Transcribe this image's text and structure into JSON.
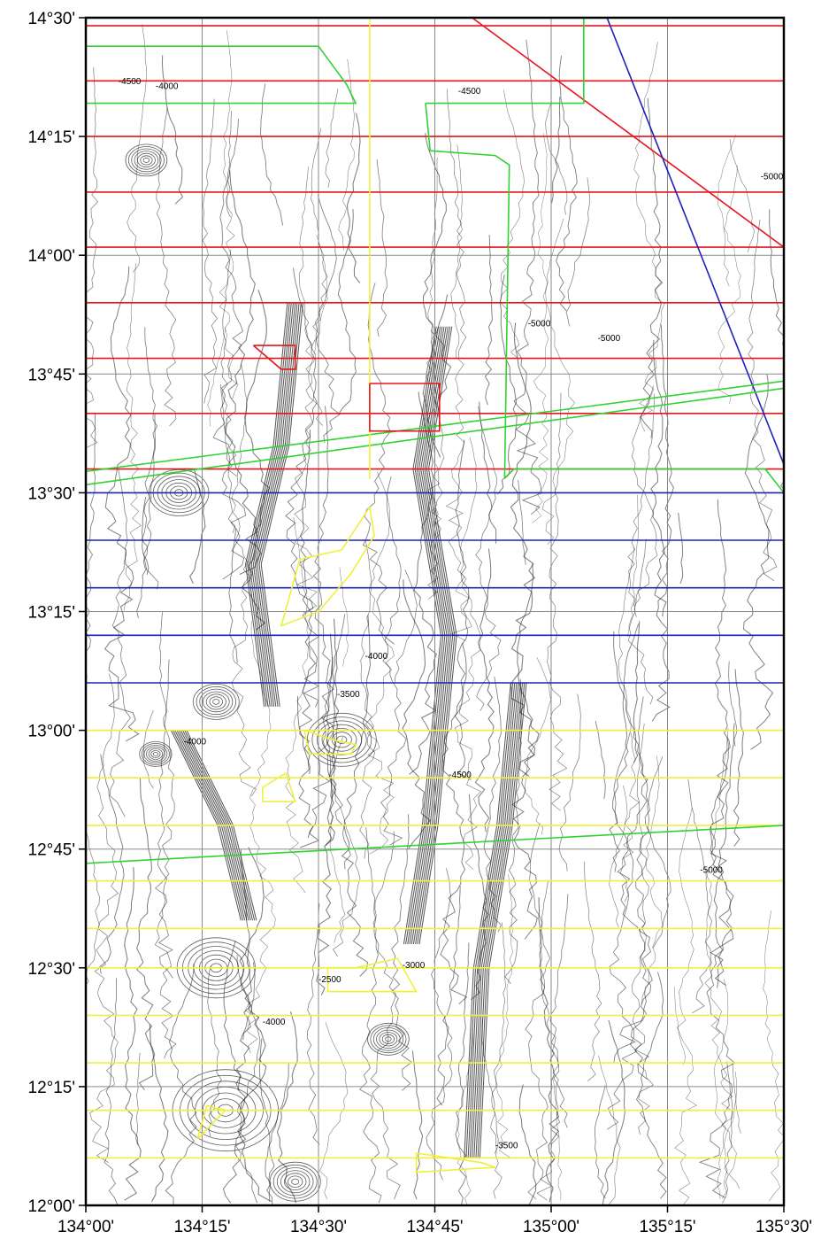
{
  "map": {
    "lon_range": [
      134.0,
      135.5
    ],
    "lat_range": [
      12.0,
      14.5
    ],
    "grid_interval_minutes": 15,
    "lon_labels": [
      "134°00'",
      "134°15'",
      "134°30'",
      "134°45'",
      "135°00'",
      "135°15'",
      "135°30'"
    ],
    "lat_labels": [
      "14°30'",
      "14°15'",
      "14°00'",
      "13°45'",
      "13°30'",
      "13°15'",
      "13°00'",
      "12°45'",
      "12°30'",
      "12°15'",
      "12°00'"
    ],
    "contour_labels": [
      "-4500",
      "-4000",
      "-4500",
      "-5000",
      "-5000",
      "-5000",
      "-4000",
      "-3500",
      "-4000",
      "-3000",
      "-2500",
      "-3500",
      "-4500",
      "-4000",
      "-5000"
    ],
    "colors": {
      "red": "#e8141c",
      "blue": "#1f22b8",
      "green": "#32d232",
      "yellow": "#f0ef3a",
      "contour": "#1a1a1a",
      "grid": "#8a8a8a",
      "frame": "#000000"
    },
    "track_lines": {
      "red_latitudes": [
        14.483,
        14.367,
        14.25,
        14.133,
        14.017,
        13.9,
        13.783,
        13.667,
        13.55
      ],
      "blue_latitudes": [
        13.5,
        13.4,
        13.3,
        13.2,
        13.1
      ],
      "yellow_latitudes": [
        13.0,
        12.9,
        12.8,
        12.683,
        12.583,
        12.5,
        12.4,
        12.3,
        12.2,
        12.1
      ],
      "red_diagonal": [
        [
          134.83,
          14.5
        ],
        [
          135.5,
          14.017
        ]
      ],
      "blue_diagonal": [
        [
          135.12,
          14.5
        ],
        [
          135.5,
          13.56
        ]
      ],
      "green_diagonals": [
        [
          [
            134.0,
            13.517
          ],
          [
            135.5,
            13.72
          ]
        ],
        [
          [
            134.0,
            13.545
          ],
          [
            135.5,
            13.735
          ]
        ],
        [
          [
            134.0,
            12.72
          ],
          [
            135.5,
            12.8
          ]
        ]
      ],
      "yellow_meridian": [
        134.61,
        14.5,
        134.61,
        13.53
      ],
      "green_tracks": [
        [
          [
            134.0,
            14.44
          ],
          [
            134.5,
            14.44
          ],
          [
            134.56,
            14.36
          ],
          [
            134.58,
            14.32
          ],
          [
            134.0,
            14.32
          ]
        ],
        [
          [
            134.73,
            14.32
          ],
          [
            134.74,
            14.22
          ],
          [
            134.88,
            14.21
          ],
          [
            134.91,
            14.19
          ],
          [
            134.9,
            13.53
          ]
        ],
        [
          [
            134.9,
            13.53
          ],
          [
            134.92,
            13.55
          ],
          [
            135.32,
            13.55
          ],
          [
            135.46,
            13.55
          ],
          [
            135.5,
            13.5
          ]
        ],
        [
          [
            134.73,
            14.32
          ],
          [
            135.07,
            14.32
          ],
          [
            135.07,
            14.5
          ]
        ]
      ],
      "red_boxes": [
        [
          [
            134.36,
            13.81
          ],
          [
            134.45,
            13.81
          ],
          [
            134.45,
            13.76
          ],
          [
            134.42,
            13.76
          ],
          [
            134.36,
            13.81
          ]
        ],
        [
          [
            134.61,
            13.73
          ],
          [
            134.76,
            13.73
          ],
          [
            134.76,
            13.63
          ],
          [
            134.61,
            13.63
          ],
          [
            134.61,
            13.73
          ]
        ]
      ],
      "yellow_polys": [
        [
          [
            134.61,
            13.47
          ],
          [
            134.55,
            13.38
          ],
          [
            134.46,
            13.36
          ],
          [
            134.42,
            13.22
          ],
          [
            134.5,
            13.25
          ],
          [
            134.57,
            13.33
          ],
          [
            134.62,
            13.41
          ],
          [
            134.61,
            13.47
          ]
        ],
        [
          [
            134.47,
            13.0
          ],
          [
            134.53,
            12.98
          ],
          [
            134.58,
            12.97
          ],
          [
            134.57,
            12.95
          ],
          [
            134.48,
            12.95
          ],
          [
            134.47,
            13.0
          ]
        ],
        [
          [
            134.38,
            12.88
          ],
          [
            134.43,
            12.91
          ],
          [
            134.45,
            12.85
          ],
          [
            134.38,
            12.85
          ],
          [
            134.38,
            12.88
          ]
        ],
        [
          [
            134.52,
            12.5
          ],
          [
            134.58,
            12.5
          ],
          [
            134.67,
            12.52
          ],
          [
            134.71,
            12.45
          ],
          [
            134.52,
            12.45
          ],
          [
            134.52,
            12.5
          ]
        ],
        [
          [
            134.26,
            12.21
          ],
          [
            134.3,
            12.2
          ],
          [
            134.24,
            12.14
          ],
          [
            134.26,
            12.21
          ]
        ],
        [
          [
            134.71,
            12.11
          ],
          [
            134.85,
            12.09
          ],
          [
            134.88,
            12.08
          ],
          [
            134.71,
            12.07
          ],
          [
            134.71,
            12.11
          ]
        ]
      ]
    }
  }
}
